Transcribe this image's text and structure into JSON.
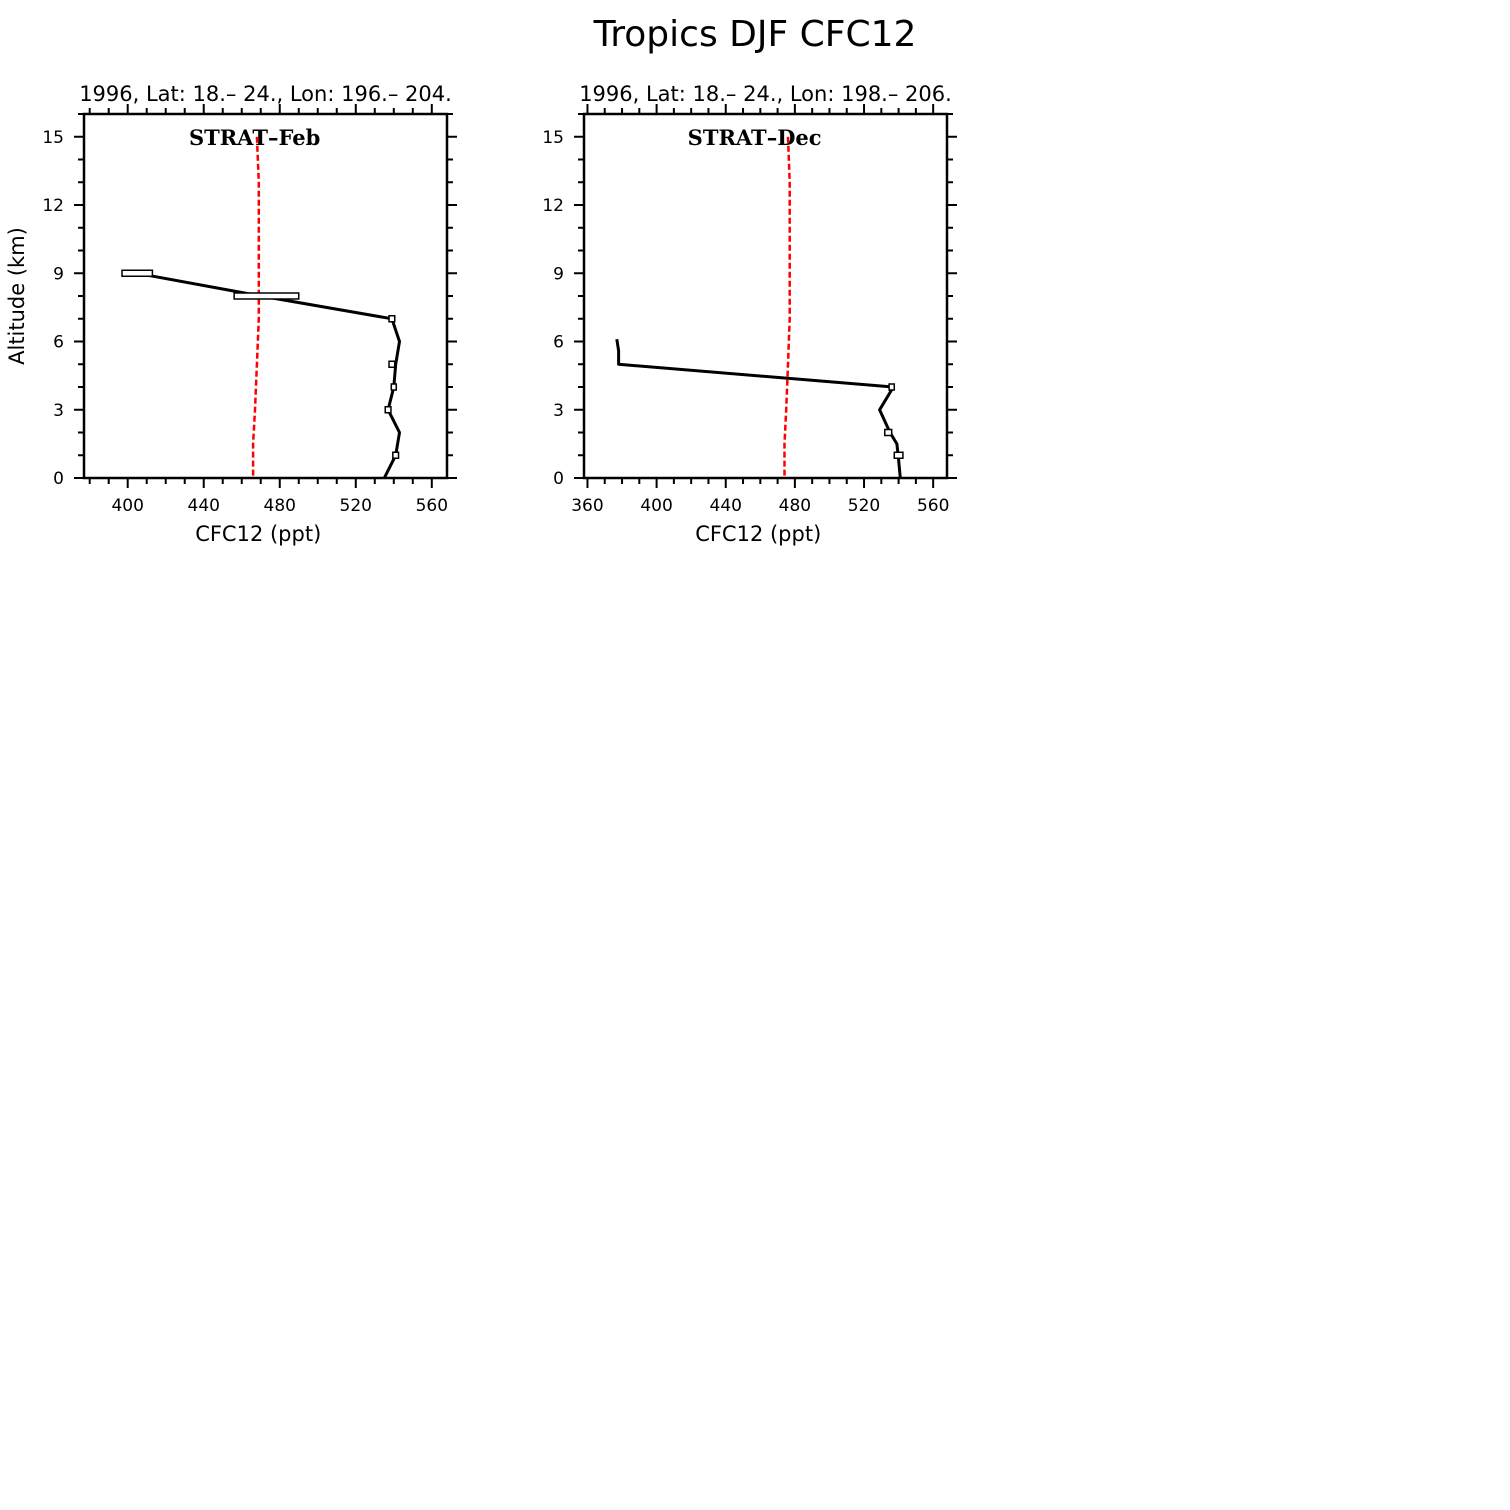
{
  "figure": {
    "title": "Tropics DJF CFC12"
  },
  "chart_data": [
    {
      "type": "line",
      "subtitle": "1996, Lat: 18.– 24., Lon: 196.– 204.",
      "annotation": "STRAT–Feb",
      "xlabel": "CFC12 (ppt)",
      "ylabel": "Altitude (km)",
      "xlim": [
        377,
        568
      ],
      "ylim": [
        0,
        16
      ],
      "xticks": [
        400,
        440,
        480,
        520,
        560
      ],
      "yticks": [
        0,
        3,
        6,
        9,
        12,
        15
      ],
      "grid": false,
      "colors": {
        "observed": "#000000",
        "model": "#ff0000"
      },
      "series": [
        {
          "style": "solid",
          "x": [
            405,
            470,
            539,
            543,
            541,
            540,
            537,
            543,
            541,
            535
          ],
          "y": [
            9,
            8,
            7,
            6,
            5,
            4,
            3,
            2,
            1,
            0
          ]
        },
        {
          "style": "dashed",
          "x": [
            468,
            469,
            469,
            469,
            469,
            468,
            467,
            466,
            466
          ],
          "y": [
            15,
            13,
            11,
            9,
            7,
            5,
            3,
            1.5,
            0
          ]
        }
      ],
      "boxes": [
        {
          "x": 405,
          "y": 9,
          "half_width": 8
        },
        {
          "x": 473,
          "y": 8,
          "half_width": 17
        },
        {
          "x": 539,
          "y": 7,
          "half_width": 1.5
        },
        {
          "x": 539,
          "y": 5,
          "half_width": 1.5
        },
        {
          "x": 540,
          "y": 4,
          "half_width": 0.8
        },
        {
          "x": 537,
          "y": 3,
          "half_width": 1.5
        },
        {
          "x": 541,
          "y": 1,
          "half_width": 1.5
        }
      ]
    },
    {
      "type": "line",
      "subtitle": "1996, Lat: 18.– 24., Lon: 198.– 206.",
      "annotation": "STRAT–Dec",
      "xlabel": "CFC12 (ppt)",
      "ylabel": "",
      "xlim": [
        358,
        568
      ],
      "ylim": [
        0,
        16
      ],
      "xticks": [
        360,
        400,
        440,
        480,
        520,
        560
      ],
      "yticks": [
        0,
        3,
        6,
        9,
        12,
        15
      ],
      "grid": false,
      "colors": {
        "observed": "#000000",
        "model": "#ff0000"
      },
      "series": [
        {
          "style": "solid",
          "x": [
            377,
            378,
            378,
            537,
            529,
            535,
            539,
            540,
            541
          ],
          "y": [
            6.1,
            5.6,
            5,
            4,
            3,
            2,
            1.5,
            0.8,
            0
          ]
        },
        {
          "style": "dashed",
          "x": [
            476,
            477,
            477,
            477,
            477,
            476,
            475,
            474,
            474
          ],
          "y": [
            15,
            13,
            11,
            9,
            7,
            5,
            3,
            1.5,
            0
          ]
        }
      ],
      "boxes": [
        {
          "x": 536,
          "y": 4,
          "half_width": 1.5
        },
        {
          "x": 534,
          "y": 2,
          "half_width": 2
        },
        {
          "x": 540,
          "y": 1,
          "half_width": 2.5
        }
      ]
    }
  ]
}
